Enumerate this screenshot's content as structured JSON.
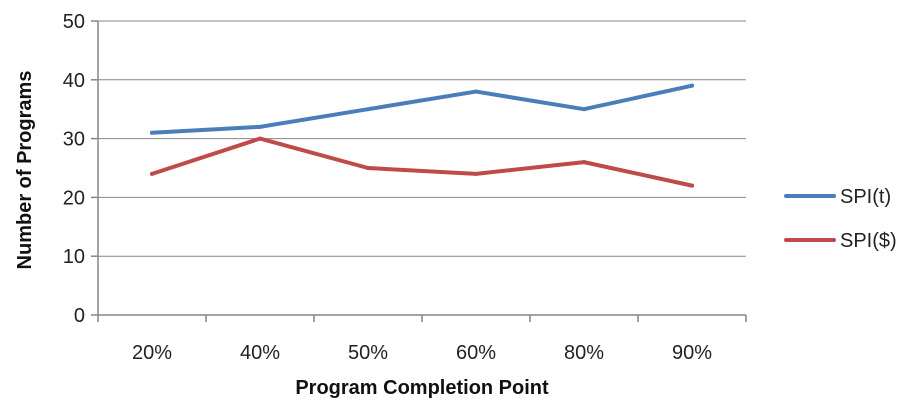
{
  "chart_data": {
    "type": "line",
    "title": "",
    "xlabel": "Program Completion Point",
    "ylabel": "Number of Programs",
    "categories": [
      "20%",
      "40%",
      "50%",
      "60%",
      "80%",
      "90%"
    ],
    "ylim": [
      0,
      50
    ],
    "yticks": [
      0,
      10,
      20,
      30,
      40,
      50
    ],
    "grid": true,
    "legend_position": "right",
    "series": [
      {
        "name": "SPI(t)",
        "color": "#4a7ebb",
        "values": [
          31,
          32,
          35,
          38,
          35,
          39
        ]
      },
      {
        "name": "SPI($)",
        "color": "#be4b48",
        "values": [
          24,
          30,
          25,
          24,
          26,
          22
        ]
      }
    ]
  }
}
